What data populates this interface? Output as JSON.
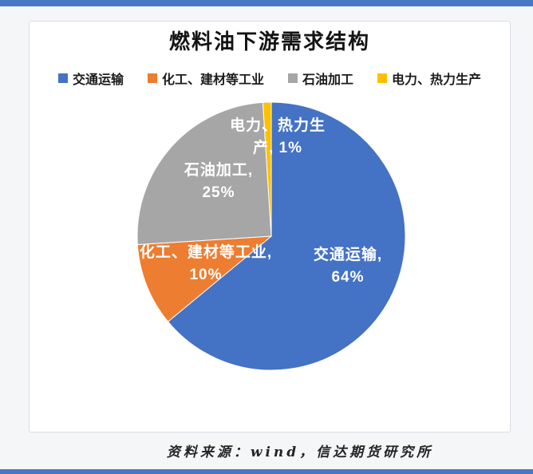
{
  "page": {
    "background": "#f5f6f8",
    "accent_bar_color": "#4a77c4",
    "card_background": "#ffffff",
    "card_border_color": "#d9dde4"
  },
  "chart_data": {
    "type": "pie",
    "title": "燃料油下游需求结构",
    "categories": [
      "交通运输",
      "化工、建材等工业",
      "石油加工",
      "电力、热力生产"
    ],
    "values": [
      64,
      10,
      25,
      1
    ],
    "unit": "%",
    "colors": [
      "#4472C4",
      "#ED7D31",
      "#A6A6A6",
      "#FFC000"
    ],
    "slice_names": [
      "transport",
      "industry",
      "oil-refining",
      "power-heat"
    ],
    "start_angle_deg": 0,
    "direction": "clockwise",
    "legend_position": "top",
    "data_labels": [
      "交通运输, 64%",
      "化工、建材等工业, 10%",
      "石油加工, 25%",
      "电力、热力生产, 1%"
    ],
    "labels": {
      "s0": [
        "交通运输,",
        "64%"
      ],
      "s1": [
        "化工、建材等工业,",
        "10%"
      ],
      "s2": [
        "石油加工,",
        "25%"
      ],
      "s3": [
        "电力、热力生",
        "产, 1%"
      ]
    },
    "label_text_color": "#ffffff",
    "source_note": "资料来源：wind，信达期货研究所"
  }
}
